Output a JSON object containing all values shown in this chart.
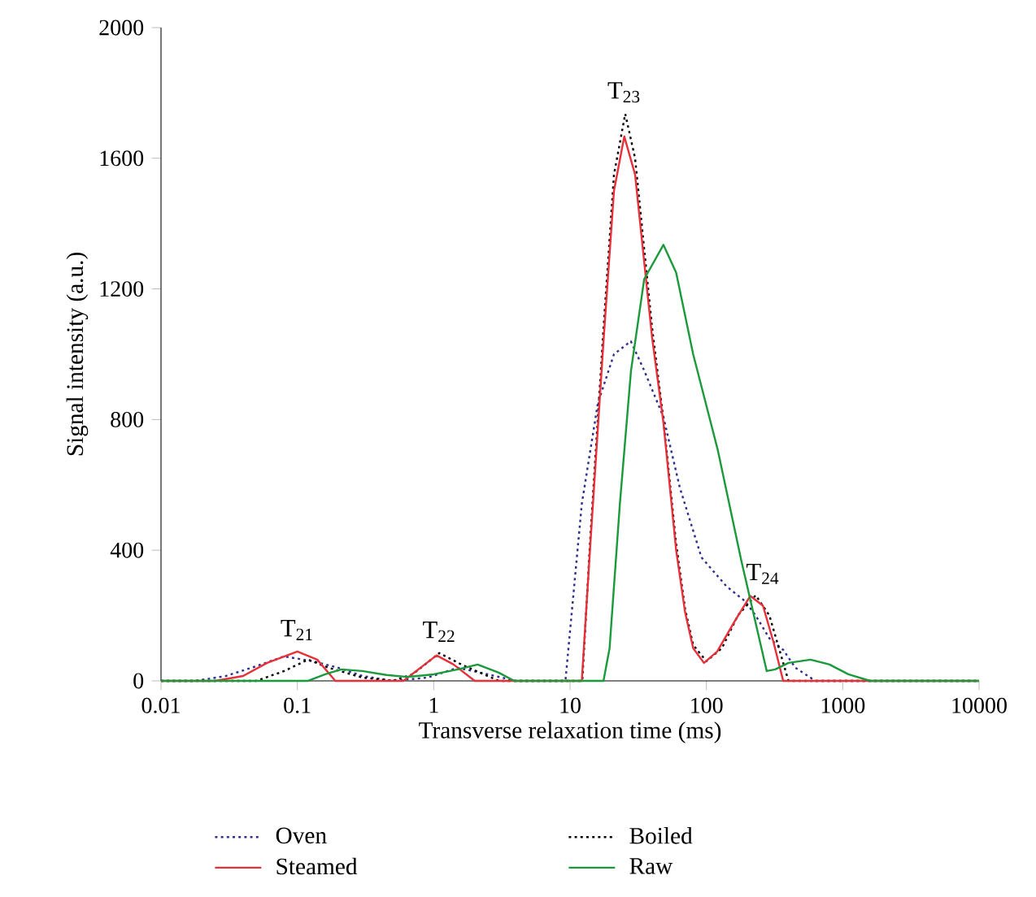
{
  "chart_data": {
    "type": "line",
    "xlabel": "Transverse relaxation time (ms)",
    "ylabel": "Signal intensity (a.u.)",
    "log": "x",
    "xlim": [
      0.01,
      10000
    ],
    "xticks": [
      0.01,
      0.1,
      1,
      10,
      100,
      1000,
      10000
    ],
    "ylim": [
      0,
      2000
    ],
    "yticks": [
      0,
      400,
      800,
      1200,
      1600,
      2000
    ],
    "legend": "bottom",
    "annotations": [
      {
        "text": "T$_{21}$",
        "x": 0.1,
        "y": 90
      },
      {
        "text": "T$_{22}$",
        "x": 1.1,
        "y": 85
      },
      {
        "text": "T$_{23}$",
        "x": 25,
        "y": 1736
      },
      {
        "text": "T$_{24}$",
        "x": 260,
        "y": 262
      }
    ],
    "series": [
      {
        "name": "Oven",
        "color": "#2e2e8c",
        "line_style": "dotted",
        "x": [
          0.01,
          0.018,
          0.03,
          0.05,
          0.08,
          0.13,
          0.2,
          0.3,
          0.5,
          0.9,
          1.5,
          2.5,
          4,
          9.25,
          12.2,
          16,
          21,
          27.9,
          35,
          48.4,
          63.8,
          92,
          140,
          192,
          230,
          290,
          366,
          450,
          630,
          10000
        ],
        "values": [
          0,
          0,
          15,
          45,
          75,
          60,
          40,
          15,
          0,
          10,
          40,
          20,
          0,
          0,
          542,
          850,
          1000,
          1040,
          950,
          808,
          592,
          378,
          290,
          244,
          200,
          130,
          95,
          40,
          0,
          0
        ]
      },
      {
        "name": "Boiled",
        "color": "#000000",
        "line_style": "dotted",
        "x": [
          0.01,
          0.05,
          0.08,
          0.12,
          0.17,
          0.3,
          0.5,
          0.7,
          1.1,
          1.6,
          3,
          12.3,
          14,
          17.6,
          21,
          25.4,
          30,
          40,
          48.4,
          60,
          69.8,
          80,
          100,
          130,
          170,
          230,
          290,
          400,
          10000
        ],
        "values": [
          0,
          0,
          30,
          65,
          40,
          10,
          0,
          20,
          85,
          50,
          0,
          0,
          420,
          1080,
          1550,
          1736,
          1600,
          1080,
          800,
          420,
          220,
          110,
          60,
          100,
          200,
          262,
          200,
          0,
          0
        ]
      },
      {
        "name": "Steamed",
        "color": "#e8303a",
        "line_style": "solid",
        "x": [
          0.01,
          0.025,
          0.04,
          0.06,
          0.1,
          0.14,
          0.19,
          0.6,
          0.8,
          1.05,
          1.4,
          2,
          12.2,
          14,
          17.6,
          21,
          25,
          30,
          40,
          48.4,
          60,
          69.8,
          80,
          96,
          120,
          160,
          210,
          260,
          310,
          366,
          10000
        ],
        "values": [
          0,
          0,
          15,
          55,
          90,
          65,
          0,
          0,
          40,
          78,
          50,
          0,
          0,
          400,
          1040,
          1500,
          1667,
          1550,
          1050,
          791,
          400,
          210,
          100,
          55,
          90,
          180,
          260,
          230,
          120,
          0,
          0
        ]
      },
      {
        "name": "Raw",
        "color": "#1a9a3a",
        "line_style": "solid",
        "x": [
          0.01,
          0.12,
          0.16,
          0.21,
          0.3,
          0.45,
          0.64,
          1,
          1.5,
          2.1,
          3,
          3.9,
          17.6,
          19.5,
          23.2,
          28,
          35,
          48.4,
          60,
          80,
          121,
          180,
          277,
          320,
          400,
          580,
          800,
          1100,
          1590,
          10000
        ],
        "values": [
          0,
          0,
          20,
          35,
          30,
          18,
          12,
          20,
          35,
          50,
          25,
          0,
          0,
          100,
          542,
          950,
          1230,
          1335,
          1250,
          1000,
          708,
          370,
          30,
          35,
          55,
          65,
          50,
          20,
          0,
          0
        ]
      }
    ]
  }
}
